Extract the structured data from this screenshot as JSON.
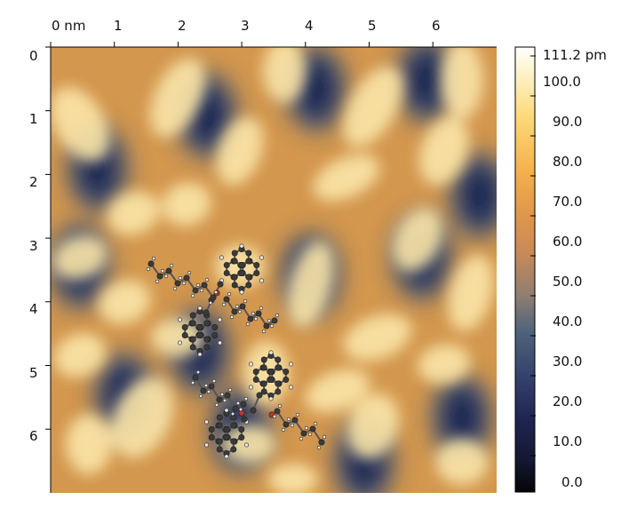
{
  "image": {
    "x_axis": {
      "unit": "nm",
      "ticks": [
        "0 nm",
        "1",
        "2",
        "3",
        "4",
        "5",
        "6"
      ]
    },
    "y_axis": {
      "ticks": [
        "0",
        "1",
        "2",
        "3",
        "4",
        "5",
        "6"
      ]
    },
    "colorbar": {
      "labels": [
        "111.2 pm",
        "100.0",
        "90.0",
        "80.0",
        "70.0",
        "60.0",
        "50.0",
        "40.0",
        "30.0",
        "20.0",
        "10.0",
        "0.0"
      ],
      "colors": [
        "#ffffff",
        "#fff2c8",
        "#fcd878",
        "#f4b44d",
        "#e39a4a",
        "#c98a58",
        "#8e7e72",
        "#4f637b",
        "#34426c",
        "#1f2450",
        "#141830",
        "#050508"
      ]
    },
    "colors": {
      "background_orange": "#d3974e",
      "bright_lobe": "#fbe6a8",
      "dark_hole": "#1a2350",
      "mid_blue": "#2f4e7b"
    }
  }
}
